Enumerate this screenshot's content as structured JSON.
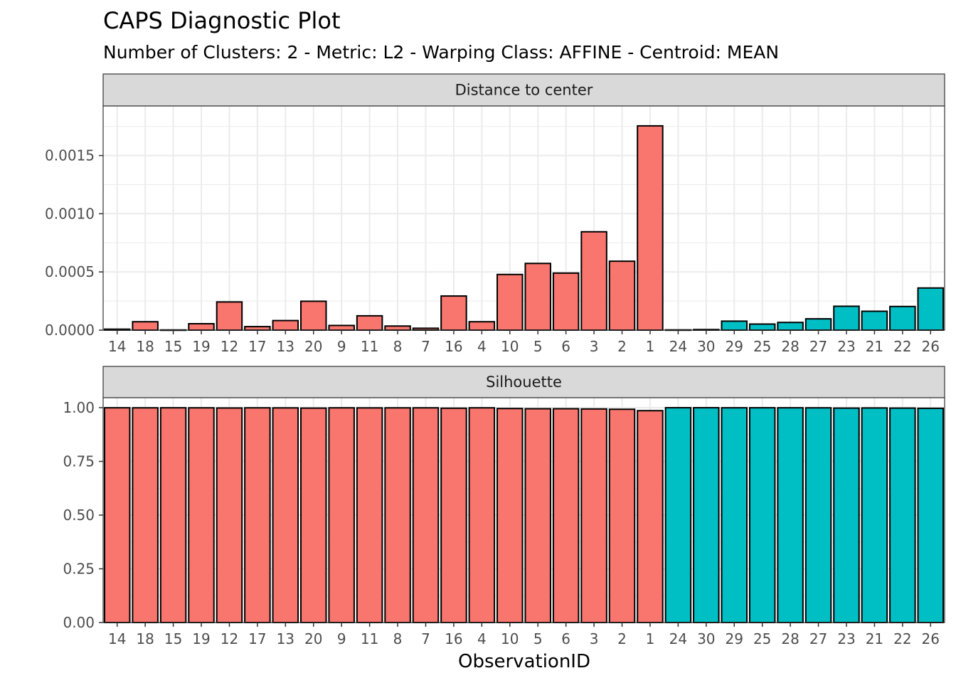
{
  "chart_data": {
    "type": "bar",
    "title": "CAPS Diagnostic Plot",
    "subtitle": "Number of Clusters: 2 - Metric: L2 - Warping Class: AFFINE - Centroid: MEAN",
    "xlabel": "ObservationID",
    "ylabel": "",
    "categories": [
      "14",
      "18",
      "15",
      "19",
      "12",
      "17",
      "13",
      "20",
      "9",
      "11",
      "8",
      "7",
      "16",
      "4",
      "10",
      "5",
      "6",
      "3",
      "2",
      "1",
      "24",
      "30",
      "29",
      "25",
      "28",
      "27",
      "23",
      "21",
      "22",
      "26"
    ],
    "cluster": [
      1,
      1,
      1,
      1,
      1,
      1,
      1,
      1,
      1,
      1,
      1,
      1,
      1,
      1,
      1,
      1,
      1,
      1,
      1,
      1,
      2,
      2,
      2,
      2,
      2,
      2,
      2,
      2,
      2,
      2
    ],
    "cluster_colors": {
      "1": "#F8766D",
      "2": "#00BFC4"
    },
    "grid": true,
    "legend": "none",
    "panels": [
      {
        "strip": "Distance to center",
        "ylim": [
          0,
          0.00184
        ],
        "yticks": [
          0.0,
          0.0005,
          0.001,
          0.0015
        ],
        "ytick_labels": [
          "0.0000",
          "0.0005",
          "0.0010",
          "0.0015"
        ],
        "values": [
          8e-06,
          7.2e-05,
          1.5e-06,
          5.5e-05,
          0.000242,
          3e-05,
          8.2e-05,
          0.000248,
          4e-05,
          0.000123,
          3.5e-05,
          1.6e-05,
          0.000293,
          7.2e-05,
          0.000478,
          0.000573,
          0.00049,
          0.000845,
          0.000592,
          0.001755,
          2e-06,
          5e-06,
          7.7e-05,
          5.2e-05,
          6.6e-05,
          9.7e-05,
          0.000205,
          0.000162,
          0.000203,
          0.000362
        ]
      },
      {
        "strip": "Silhouette",
        "ylim": [
          0,
          1.0
        ],
        "yticks": [
          0.0,
          0.25,
          0.5,
          0.75,
          1.0
        ],
        "ytick_labels": [
          "0.00",
          "0.25",
          "0.50",
          "0.75",
          "1.00"
        ],
        "values": [
          0.9995,
          0.9993,
          0.9995,
          0.9993,
          0.9985,
          0.9993,
          0.999,
          0.998,
          0.9993,
          0.999,
          0.9992,
          0.9993,
          0.9975,
          0.9993,
          0.996,
          0.995,
          0.995,
          0.994,
          0.9925,
          0.986,
          0.9998,
          0.9998,
          0.9995,
          0.9996,
          0.9995,
          0.9993,
          0.998,
          0.9987,
          0.998,
          0.997
        ]
      }
    ]
  }
}
